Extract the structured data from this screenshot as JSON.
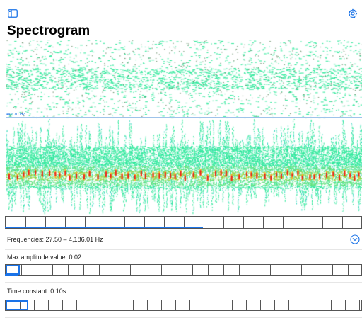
{
  "header": {
    "sidebar_toggle_icon": "sidebar-toggle-icon",
    "settings_icon": "gear-icon",
    "title": "Spectrogram"
  },
  "spectrogram": {
    "cursor_frequency_label": "442.70 Hz",
    "colors": {
      "low": "#2ee89a",
      "mid": "#9ad23a",
      "high": "#ffb020",
      "peak": "#e8201a",
      "accent": "#1a73e8"
    }
  },
  "controls": {
    "frequencies_label": "Frequencies: 27.50 – 4,186.01 Hz",
    "expand_icon": "chevron-down-circle-icon",
    "max_amplitude_label": "Max amplitude value: 0.02",
    "time_constant_label": "Time constant: 0.10s"
  }
}
